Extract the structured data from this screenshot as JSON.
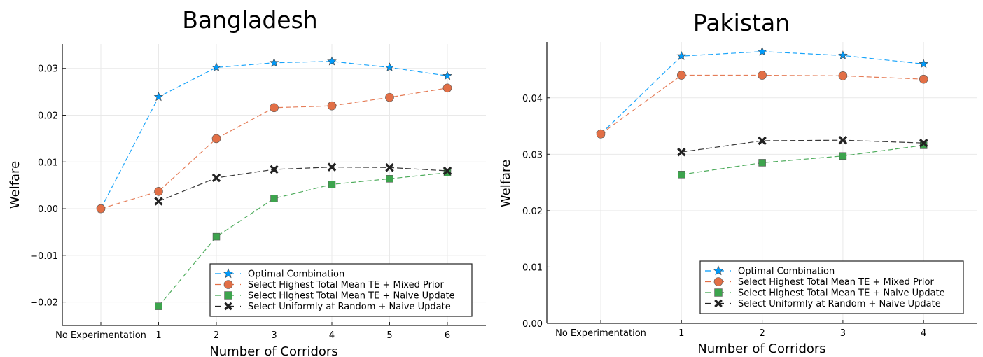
{
  "chart_data": [
    {
      "type": "line",
      "title": "Bangladesh",
      "xlabel": "Number of Corridors",
      "ylabel": "Welfare",
      "categories": [
        "No Experimentation",
        "1",
        "2",
        "3",
        "4",
        "5",
        "6"
      ],
      "ylim": [
        -0.025,
        0.0352
      ],
      "yticks": [
        -0.02,
        -0.01,
        0.0,
        0.01,
        0.02,
        0.03
      ],
      "ytick_labels": [
        "−0.02",
        "−0.01",
        "0.00",
        "0.01",
        "0.02",
        "0.03"
      ],
      "grid": true,
      "legend_position": "bottom-right",
      "series": [
        {
          "name": "Optimal Combination",
          "color": "#009AFA",
          "marker": "star",
          "values": [
            0.0,
            0.0239,
            0.0302,
            0.0312,
            0.0315,
            0.0302,
            0.0284
          ]
        },
        {
          "name": "Select Highest Total Mean TE + Mixed Prior",
          "color": "#E26F46",
          "marker": "circle",
          "values": [
            0.0,
            0.0037,
            0.015,
            0.0216,
            0.022,
            0.0238,
            0.0258
          ]
        },
        {
          "name": "Select Highest Total Mean TE + Naive Update",
          "color": "#3DA44D",
          "marker": "square",
          "values": [
            null,
            -0.0209,
            -0.006,
            0.0022,
            0.0052,
            0.0064,
            0.0077
          ]
        },
        {
          "name": "Select Uniformly at Random + Naive Update",
          "color": "#222222",
          "marker": "x",
          "values": [
            null,
            0.0016,
            0.0066,
            0.0084,
            0.0089,
            0.0088,
            0.0081
          ]
        }
      ]
    },
    {
      "type": "line",
      "title": "Pakistan",
      "xlabel": "Number of Corridors",
      "ylabel": "Welfare",
      "categories": [
        "No Experimentation",
        "1",
        "2",
        "3",
        "4"
      ],
      "ylim": [
        0.0,
        0.0499
      ],
      "yticks": [
        0.0,
        0.01,
        0.02,
        0.03,
        0.04
      ],
      "ytick_labels": [
        "0.00",
        "0.01",
        "0.02",
        "0.03",
        "0.04"
      ],
      "grid": true,
      "legend_position": "bottom-right",
      "series": [
        {
          "name": "Optimal Combination",
          "color": "#009AFA",
          "marker": "star",
          "values": [
            0.0336,
            0.0474,
            0.0482,
            0.0475,
            0.046
          ]
        },
        {
          "name": "Select Highest Total Mean TE + Mixed Prior",
          "color": "#E26F46",
          "marker": "circle",
          "values": [
            0.0336,
            0.044,
            0.044,
            0.0439,
            0.0433
          ]
        },
        {
          "name": "Select Highest Total Mean TE + Naive Update",
          "color": "#3DA44D",
          "marker": "square",
          "values": [
            null,
            0.0264,
            0.0285,
            0.0297,
            0.0316
          ]
        },
        {
          "name": "Select Uniformly at Random + Naive Update",
          "color": "#222222",
          "marker": "x",
          "values": [
            null,
            0.0304,
            0.0324,
            0.0325,
            0.032
          ]
        }
      ]
    }
  ]
}
